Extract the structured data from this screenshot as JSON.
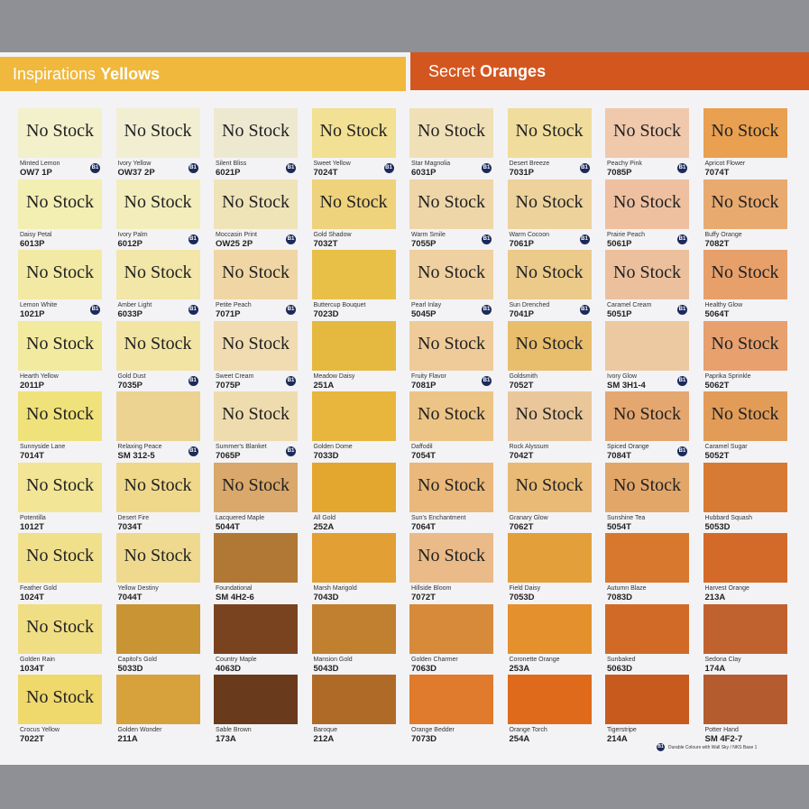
{
  "header": {
    "left": {
      "light": "Inspirations",
      "bold": "Yellows",
      "color": "#f0b83c"
    },
    "right": {
      "light": "Secret",
      "bold": "Oranges",
      "color": "#d4561f"
    }
  },
  "columns": [
    [
      {
        "name": "Minted Lemon",
        "code": "OW7 1P",
        "label": "No Stock",
        "badge": "B1",
        "color": "#f3f0cc"
      },
      {
        "name": "Daisy Petal",
        "code": "6013P",
        "label": "No Stock",
        "color": "#f3eeb2"
      },
      {
        "name": "Lemon White",
        "code": "1021P",
        "label": "No Stock",
        "badge": "B1",
        "color": "#f2eaa4"
      },
      {
        "name": "Hearth Yellow",
        "code": "2011P",
        "label": "No Stock",
        "color": "#f2ea9e"
      },
      {
        "name": "Sunnyside Lane",
        "code": "7014T",
        "label": "No Stock",
        "color": "#f0e27a"
      },
      {
        "name": "Potentilla",
        "code": "1012T",
        "label": "No Stock",
        "color": "#f2e596"
      },
      {
        "name": "Feather Gold",
        "code": "1024T",
        "label": "No Stock",
        "color": "#f0e08c"
      },
      {
        "name": "Golden Rain",
        "code": "1034T",
        "label": "No Stock",
        "color": "#f0de84"
      },
      {
        "name": "Crocus Yellow",
        "code": "7022T",
        "label": "No Stock",
        "color": "#efd86c"
      }
    ],
    [
      {
        "name": "Ivory Yellow",
        "code": "OW37 2P",
        "label": "No Stock",
        "badge": "B1",
        "color": "#f1eed2"
      },
      {
        "name": "Ivory Palm",
        "code": "6012P",
        "label": "No Stock",
        "badge": "B1",
        "color": "#f2edba"
      },
      {
        "name": "Amber Light",
        "code": "6033P",
        "label": "No Stock",
        "badge": "B1",
        "color": "#f2e6a8"
      },
      {
        "name": "Gold Dust",
        "code": "7035P",
        "label": "No Stock",
        "badge": "B1",
        "color": "#f2e4a2"
      },
      {
        "name": "Relaxing Peace",
        "code": "SM 312-5",
        "badge": "B1",
        "color": "#ecd392"
      },
      {
        "name": "Desert Fire",
        "code": "7034T",
        "label": "No Stock",
        "color": "#efd88a"
      },
      {
        "name": "Yellow Destiny",
        "code": "7044T",
        "label": "No Stock",
        "color": "#eed98e"
      },
      {
        "name": "Capitol's Gold",
        "code": "5033D",
        "color": "#c99434"
      },
      {
        "name": "Golden Wonder",
        "code": "211A",
        "color": "#d7a13c"
      }
    ],
    [
      {
        "name": "Silent Bliss",
        "code": "6021P",
        "label": "No Stock",
        "badge": "B1",
        "color": "#ede8d0"
      },
      {
        "name": "Moccasin Print",
        "code": "OW25 2P",
        "label": "No Stock",
        "badge": "B1",
        "color": "#efe3b8"
      },
      {
        "name": "Petite Peach",
        "code": "7071P",
        "label": "No Stock",
        "badge": "B1",
        "color": "#f0d6a4"
      },
      {
        "name": "Sweet Cream",
        "code": "7075P",
        "label": "No Stock",
        "badge": "B1",
        "color": "#f0dcb0"
      },
      {
        "name": "Summer's Blanket",
        "code": "7065P",
        "label": "No Stock",
        "badge": "B1",
        "color": "#efdcae"
      },
      {
        "name": "Lacquered Maple",
        "code": "5044T",
        "label": "No Stock",
        "color": "#d9a86a"
      },
      {
        "name": "Foundational",
        "code": "SM 4H2-6",
        "color": "#b07834"
      },
      {
        "name": "Country Maple",
        "code": "4063D",
        "color": "#7a4320"
      },
      {
        "name": "Sable Brown",
        "code": "173A",
        "color": "#6a3a1c"
      }
    ],
    [
      {
        "name": "Sweet Yellow",
        "code": "7024T",
        "label": "No Stock",
        "badge": "B1",
        "color": "#f2e094"
      },
      {
        "name": "Gold Shadow",
        "code": "7032T",
        "label": "No Stock",
        "color": "#eed27c"
      },
      {
        "name": "Buttercup Bouquet",
        "code": "7023D",
        "color": "#e8c048"
      },
      {
        "name": "Meadow Daisy",
        "code": "251A",
        "color": "#e5b840"
      },
      {
        "name": "Golden Dome",
        "code": "7033D",
        "color": "#e8b63c"
      },
      {
        "name": "All Gold",
        "code": "252A",
        "color": "#e3a62e"
      },
      {
        "name": "Marsh Marigold",
        "code": "7043D",
        "color": "#e29f34"
      },
      {
        "name": "Mansion Gold",
        "code": "5043D",
        "color": "#c08030"
      },
      {
        "name": "Baroque",
        "code": "212A",
        "color": "#b06a28"
      }
    ],
    [
      {
        "name": "Star Magnolia",
        "code": "6031P",
        "label": "No Stock",
        "badge": "B1",
        "color": "#f0e0b8"
      },
      {
        "name": "Warm Smile",
        "code": "7055P",
        "label": "No Stock",
        "badge": "B1",
        "color": "#efd6a8"
      },
      {
        "name": "Pearl Inlay",
        "code": "5045P",
        "label": "No Stock",
        "badge": "B1",
        "color": "#efd0a0"
      },
      {
        "name": "Fruity Flavor",
        "code": "7081P",
        "label": "No Stock",
        "badge": "B1",
        "color": "#eecb98"
      },
      {
        "name": "Daffodil",
        "code": "7054T",
        "label": "No Stock",
        "color": "#ecc486"
      },
      {
        "name": "Sun's Enchantment",
        "code": "7064T",
        "label": "No Stock",
        "color": "#eab87a"
      },
      {
        "name": "Hillside Bloom",
        "code": "7072T",
        "label": "No Stock",
        "color": "#eaba88"
      },
      {
        "name": "Golden Charmer",
        "code": "7063D",
        "color": "#d78a3a"
      },
      {
        "name": "Orange Bedder",
        "code": "7073D",
        "color": "#e07a2c"
      }
    ],
    [
      {
        "name": "Desert Breeze",
        "code": "7031P",
        "label": "No Stock",
        "badge": "B1",
        "color": "#f0dc9c"
      },
      {
        "name": "Warm Cocoon",
        "code": "7061P",
        "label": "No Stock",
        "badge": "B1",
        "color": "#eed29c"
      },
      {
        "name": "Sun Drenched",
        "code": "7041P",
        "label": "No Stock",
        "badge": "B1",
        "color": "#ecca8a"
      },
      {
        "name": "Goldsmith",
        "code": "7052T",
        "label": "No Stock",
        "color": "#e8bd6c"
      },
      {
        "name": "Rock Alyssum",
        "code": "7042T",
        "label": "No Stock",
        "color": "#eac79a"
      },
      {
        "name": "Granary Glow",
        "code": "7062T",
        "label": "No Stock",
        "color": "#e9ba76"
      },
      {
        "name": "Field Daisy",
        "code": "7053D",
        "color": "#e3a03a"
      },
      {
        "name": "Coronette Orange",
        "code": "253A",
        "color": "#e4902c"
      },
      {
        "name": "Orange Torch",
        "code": "254A",
        "color": "#e06a1c"
      }
    ],
    [
      {
        "name": "Peachy Pink",
        "code": "7085P",
        "label": "No Stock",
        "badge": "B1",
        "color": "#f0c8ac"
      },
      {
        "name": "Prairie Peach",
        "code": "5061P",
        "label": "No Stock",
        "badge": "B1",
        "color": "#efc0a0"
      },
      {
        "name": "Caramel Cream",
        "code": "5051P",
        "label": "No Stock",
        "badge": "B1",
        "color": "#ecc09c"
      },
      {
        "name": "Ivory Glow",
        "code": "SM 3H1-4",
        "badge": "B1",
        "color": "#ecc9a0"
      },
      {
        "name": "Spiced Orange",
        "code": "7084T",
        "label": "No Stock",
        "badge": "B1",
        "color": "#e5a770"
      },
      {
        "name": "Sunshine Tea",
        "code": "5054T",
        "label": "No Stock",
        "color": "#e2a668"
      },
      {
        "name": "Autumn Blaze",
        "code": "7083D",
        "color": "#d8782e"
      },
      {
        "name": "Sunbaked",
        "code": "5063D",
        "color": "#d06a26"
      },
      {
        "name": "Tigerstripe",
        "code": "214A",
        "color": "#c85a1e"
      }
    ],
    [
      {
        "name": "Apricot Flower",
        "code": "7074T",
        "label": "No Stock",
        "color": "#e9a050"
      },
      {
        "name": "Buffy Orange",
        "code": "7082T",
        "label": "No Stock",
        "color": "#e9aa70"
      },
      {
        "name": "Healthy Glow",
        "code": "5064T",
        "label": "No Stock",
        "color": "#e8a06a"
      },
      {
        "name": "Paprika Sprinkle",
        "code": "5062T",
        "label": "No Stock",
        "color": "#e7a06e"
      },
      {
        "name": "Caramel Sugar",
        "code": "5052T",
        "label": "No Stock",
        "color": "#e29c58"
      },
      {
        "name": "Hubbard Squash",
        "code": "5053D",
        "color": "#d77a34"
      },
      {
        "name": "Harvest Orange",
        "code": "213A",
        "color": "#d46a2a"
      },
      {
        "name": "Sedona Clay",
        "code": "174A",
        "color": "#c06230"
      },
      {
        "name": "Potter Hand",
        "code": "SM 4F2-7",
        "color": "#b45c30"
      }
    ]
  ],
  "footnote": {
    "badge": "B1",
    "text": "Durable Colours with Wall Sky / NKS Base 1"
  }
}
